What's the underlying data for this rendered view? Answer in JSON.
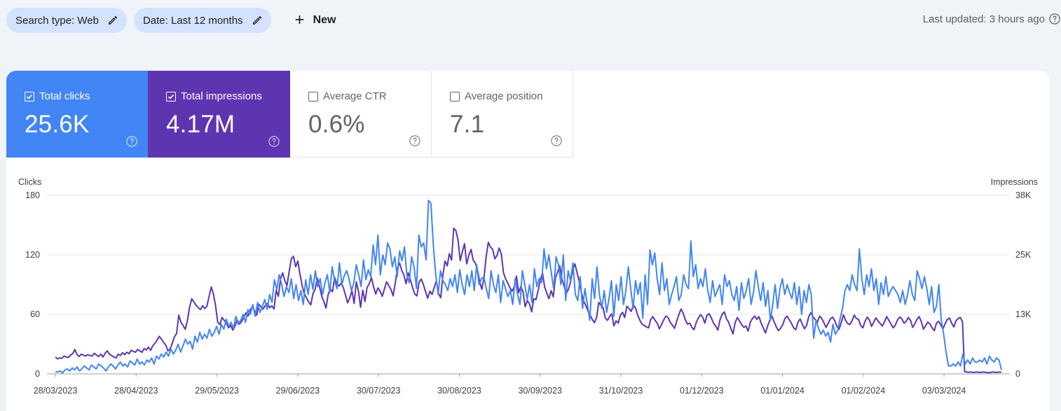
{
  "filters": {
    "search_type": "Search type: Web",
    "date": "Date: Last 12 months",
    "new_label": "New"
  },
  "last_updated": "Last updated: 3 hours ago",
  "metrics": {
    "clicks": {
      "label": "Total clicks",
      "value": "25.6K",
      "checked": true
    },
    "impressions": {
      "label": "Total impressions",
      "value": "4.17M",
      "checked": true
    },
    "ctr": {
      "label": "Average CTR",
      "value": "0.6%",
      "checked": false
    },
    "position": {
      "label": "Average position",
      "value": "7.1",
      "checked": false
    }
  },
  "colors": {
    "clicks": "#4285f4",
    "impressions": "#5e35b1",
    "background": "#f0f4f9",
    "chip": "#d3e3fd"
  },
  "icons": {
    "edit": "pencil-icon",
    "add": "plus-icon",
    "help": "help-circle-icon",
    "checkbox": "checkbox-icon"
  },
  "chart_data": {
    "type": "line",
    "ylabel": "Clicks",
    "y2label": "Impressions",
    "ylim": [
      0,
      180
    ],
    "y2lim": [
      0,
      38000
    ],
    "yticks": [
      "0",
      "60",
      "120",
      "180"
    ],
    "y2ticks": [
      "0",
      "13K",
      "25K",
      "38K"
    ],
    "xticks": [
      "28/03/2023",
      "28/04/2023",
      "29/05/2023",
      "29/06/2023",
      "30/07/2023",
      "30/08/2023",
      "30/09/2023",
      "31/10/2023",
      "01/12/2023",
      "01/01/2024",
      "01/02/2024",
      "03/03/2024"
    ],
    "grid": true,
    "x_start": "28/03/2023",
    "x_end": "25/03/2024",
    "series": [
      {
        "name": "Clicks",
        "axis": "left",
        "values": [
          2,
          2,
          3,
          1,
          4,
          5,
          3,
          6,
          4,
          7,
          3,
          5,
          8,
          6,
          4,
          9,
          7,
          5,
          10,
          8,
          6,
          3,
          7,
          10,
          8,
          5,
          9,
          12,
          8,
          10,
          7,
          13,
          11,
          9,
          15,
          10,
          12,
          9,
          14,
          12,
          16,
          10,
          18,
          15,
          20,
          17,
          22,
          18,
          25,
          20,
          24,
          30,
          22,
          28,
          35,
          30,
          33,
          25,
          38,
          32,
          42,
          35,
          40,
          36,
          45,
          38,
          42,
          48,
          40,
          50,
          45,
          55,
          48,
          52,
          46,
          58,
          50,
          54,
          60,
          52,
          65,
          60,
          70,
          58,
          72,
          62,
          68,
          75,
          65,
          80,
          72,
          95,
          85,
          100,
          90,
          78,
          88,
          82,
          96,
          76,
          90,
          74,
          84,
          70,
          95,
          80,
          100,
          85,
          104,
          88,
          96,
          80,
          92,
          100,
          82,
          108,
          94,
          86,
          112,
          90,
          99,
          104,
          96,
          84,
          92,
          110,
          100,
          88,
          115,
          95,
          105,
          98,
          130,
          110,
          140,
          100,
          120,
          110,
          132,
          126,
          108,
          118,
          98,
          124,
          114,
          128,
          100,
          92,
          118,
          108,
          86,
          140,
          128,
          132,
          115,
          175,
          172,
          130,
          100,
          80,
          104,
          94,
          90,
          84,
          96,
          88,
          100,
          82,
          105,
          90,
          80,
          100,
          88,
          104,
          84,
          110,
          90,
          96,
          98,
          86,
          76,
          104,
          90,
          82,
          100,
          72,
          94,
          86,
          78,
          84,
          70,
          96,
          80,
          70,
          104,
          90,
          75,
          90,
          72,
          106,
          88,
          96,
          92,
          126,
          106,
          120,
          102,
          86,
          118,
          110,
          90,
          120,
          74,
          104,
          94,
          112,
          80,
          74,
          98,
          66,
          86,
          70,
          54,
          96,
          76,
          108,
          80,
          66,
          84,
          62,
          76,
          94,
          58,
          90,
          74,
          98,
          70,
          84,
          108,
          86,
          66,
          94,
          80,
          92,
          56,
          100,
          70,
          125,
          110,
          122,
          96,
          80,
          112,
          84,
          96,
          70,
          80,
          88,
          98,
          74,
          80,
          100,
          90,
          86,
          134,
          98,
          110,
          86,
          96,
          88,
          106,
          84,
          72,
          94,
          78,
          84,
          90,
          70,
          100,
          88,
          94,
          80,
          74,
          88,
          64,
          92,
          76,
          84,
          96,
          70,
          82,
          104,
          88,
          74,
          92,
          68,
          84,
          54,
          70,
          90,
          66,
          86,
          96,
          80,
          90,
          82,
          76,
          92,
          70,
          88,
          60,
          84,
          72,
          90,
          80,
          36,
          54,
          46,
          40,
          44,
          38,
          42,
          32,
          50,
          40,
          44,
          56,
          66,
          84,
          90,
          84,
          100,
          90,
          84,
          126,
          96,
          80,
          100,
          88,
          106,
          84,
          96,
          70,
          92,
          80,
          98,
          78,
          84,
          88,
          84,
          80,
          72,
          84,
          70,
          80,
          94,
          80,
          74,
          104,
          96,
          86,
          98,
          86,
          70,
          88,
          62,
          68,
          90,
          54,
          40,
          22,
          8,
          8,
          10,
          8,
          12,
          8,
          20,
          10,
          14,
          10,
          16,
          12,
          12,
          14,
          12,
          16,
          10,
          18,
          14,
          12,
          16,
          14,
          4
        ]
      },
      {
        "name": "Impressions",
        "axis": "right",
        "values": [
          3600,
          3200,
          3400,
          3300,
          3800,
          3600,
          3500,
          4000,
          4300,
          5200,
          4100,
          3700,
          4200,
          4000,
          3800,
          4100,
          3900,
          3800,
          4400,
          4000,
          3700,
          4200,
          3600,
          4400,
          4900,
          4200,
          3900,
          3600,
          3400,
          4200,
          3900,
          4500,
          4100,
          4600,
          4300,
          5000,
          4800,
          4600,
          5200,
          4900,
          4600,
          5400,
          5100,
          5700,
          5000,
          6000,
          6500,
          7200,
          8000,
          7400,
          6700,
          6100,
          4900,
          5300,
          6500,
          7900,
          8600,
          12500,
          11000,
          10300,
          9500,
          11300,
          14200,
          16000,
          15300,
          14600,
          14100,
          13700,
          14500,
          13900,
          14400,
          16500,
          18500,
          17000,
          14500,
          11000,
          10500,
          12000,
          11400,
          10800,
          9800,
          10300,
          9300,
          10200,
          11500,
          10600,
          11100,
          12000,
          13000,
          12300,
          13600,
          14300,
          13400,
          12500,
          14800,
          14300,
          13800,
          14600,
          15000,
          14100,
          14500,
          13800,
          17800,
          16500,
          20200,
          21500,
          19800,
          18800,
          21800,
          24500,
          25000,
          22800,
          24000,
          21200,
          18800,
          17000,
          16200,
          15300,
          14700,
          17100,
          18000,
          20400,
          18600,
          16600,
          15400,
          14000,
          16900,
          18000,
          17500,
          20500,
          19200,
          18700,
          19300,
          18400,
          16800,
          15100,
          16200,
          17700,
          15000,
          19600,
          17600,
          14200,
          17800,
          15400,
          18400,
          19200,
          20500,
          18500,
          17000,
          18300,
          17600,
          16500,
          18100,
          19600,
          18800,
          18000,
          16600,
          19300,
          22500,
          23600,
          22000,
          21000,
          19200,
          21500,
          20000,
          18400,
          17000,
          16600,
          19500,
          20200,
          19000,
          17500,
          16100,
          17600,
          16900,
          18400,
          19800,
          17100,
          16200,
          21000,
          24000,
          23000,
          25600,
          24200,
          31000,
          30500,
          28500,
          24100,
          26000,
          27700,
          23400,
          25300,
          26500,
          24200,
          23600,
          22100,
          19600,
          18000,
          20500,
          25000,
          28000,
          27000,
          26500,
          24500,
          25200,
          26800,
          25500,
          21500,
          20200,
          19300,
          18300,
          17600,
          18600,
          20800,
          17300,
          18600,
          17500,
          14300,
          15600,
          14900,
          13200,
          16000,
          15800,
          17700,
          20000,
          21500,
          18500,
          17200,
          16000,
          17700,
          16400,
          20500,
          21700,
          23000,
          20100,
          18700,
          17100,
          18000,
          19600,
          22200,
          23400,
          21500,
          19600,
          17200,
          15500,
          14600,
          13400,
          12500,
          11600,
          10900,
          12000,
          15200,
          14600,
          14100,
          11900,
          11400,
          12200,
          12800,
          10200,
          11300,
          10800,
          12500,
          13100,
          12000,
          14400,
          13900,
          13300,
          14700,
          14000,
          12500,
          11400,
          10600,
          10300,
          10000,
          9800,
          11600,
          12200,
          11400,
          10800,
          9600,
          10500,
          11500,
          12300,
          12000,
          11000,
          10400,
          9700,
          11200,
          12600,
          13800,
          12900,
          11500,
          10600,
          10800,
          9900,
          9400,
          10900,
          11900,
          12600,
          12100,
          10800,
          12500,
          12800,
          11900,
          10800,
          10200,
          9300,
          11500,
          12700,
          13200,
          11700,
          11000,
          9700,
          8500,
          10900,
          12000,
          11300,
          10500,
          9900,
          10200,
          9100,
          11000,
          11800,
          12300,
          11600,
          12200,
          10800,
          9800,
          8700,
          10200,
          11400,
          12300,
          11100,
          10000,
          9200,
          9700,
          10500,
          11800,
          12300,
          11500,
          10800,
          9800,
          9400,
          11000,
          11700,
          10600,
          9600,
          10300,
          12200,
          13000,
          12100,
          11600,
          11000,
          12300,
          11800,
          10900,
          9900,
          10800,
          11700,
          12100,
          11300,
          10100,
          9500,
          10900,
          12600,
          11400,
          10700,
          10500,
          11300,
          12500,
          11800,
          11600,
          10300,
          9800,
          11200,
          12100,
          11500,
          10100,
          11000,
          11900,
          11300,
          10700,
          10200,
          11100,
          12200,
          11400,
          10600,
          9800,
          10400,
          11500,
          12100,
          11700,
          10800,
          11200,
          12000,
          11400,
          9900,
          10700,
          11600,
          12200,
          11100,
          9500,
          10300,
          11000,
          10600,
          9800,
          9200,
          10800,
          11200,
          10400,
          9600,
          10700,
          11600,
          11900,
          10800,
          10000,
          11300,
          11800,
          12000,
          11100,
          500,
          400,
          350,
          400,
          300,
          350,
          400,
          300,
          350,
          400,
          300,
          250,
          300,
          400,
          350,
          300,
          400,
          350
        ]
      }
    ]
  }
}
